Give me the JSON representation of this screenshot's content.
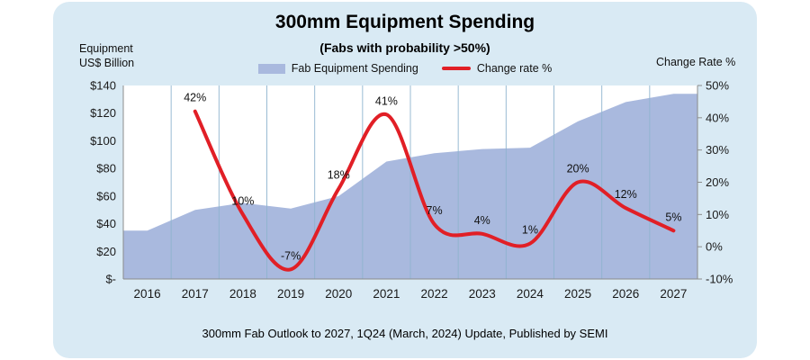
{
  "title": "300mm Equipment Spending",
  "subtitle": "(Fabs with probability >50%)",
  "footer": "300mm Fab Outlook to 2027, 1Q24 (March, 2024) Update, Published by SEMI",
  "left_axis_title": {
    "line1": "Equipment",
    "line2": "US$ Billion"
  },
  "right_axis_title": "Change Rate %",
  "legend": {
    "spending": "Fab Equipment Spending",
    "change_rate": "Change rate %"
  },
  "colors": {
    "panel_bg": "#d9eaf4",
    "plot_bg": "#ffffff",
    "area_fill": "#a9b9de",
    "line": "#e11f26",
    "gridline": "#8fb4cf",
    "axis": "#8c8c8c"
  },
  "chart_data": {
    "type": "area",
    "title": "300mm Equipment Spending",
    "subtitle": "(Fabs with probability >50%)",
    "categories": [
      "2016",
      "2017",
      "2018",
      "2019",
      "2020",
      "2021",
      "2022",
      "2023",
      "2024",
      "2025",
      "2026",
      "2027"
    ],
    "series": [
      {
        "name": "Fab Equipment Spending",
        "type": "area",
        "axis": "left",
        "unit": "US$ Billion",
        "values": [
          35,
          50,
          55,
          51,
          60,
          85,
          91,
          94,
          95,
          114,
          128,
          134
        ]
      },
      {
        "name": "Change rate %",
        "type": "line",
        "axis": "right",
        "unit": "%",
        "values": [
          null,
          42,
          10,
          -7,
          18,
          41,
          7,
          4,
          1,
          20,
          12,
          5
        ],
        "labels": [
          null,
          "42%",
          "10%",
          "-7%",
          "18%",
          "41%",
          "7%",
          "4%",
          "1%",
          "20%",
          "12%",
          "5%"
        ]
      }
    ],
    "left_axis": {
      "label": "Equipment US$ Billion",
      "min": 0,
      "max": 140,
      "ticks": [
        "$140",
        "$120",
        "$100",
        "$80",
        "$60",
        "$40",
        "$20",
        "$-"
      ]
    },
    "right_axis": {
      "label": "Change Rate %",
      "min": -10,
      "max": 50,
      "ticks": [
        "50%",
        "40%",
        "30%",
        "20%",
        "10%",
        "0%",
        "-10%"
      ]
    },
    "grid": "vertical-only",
    "legend_position": "top"
  }
}
